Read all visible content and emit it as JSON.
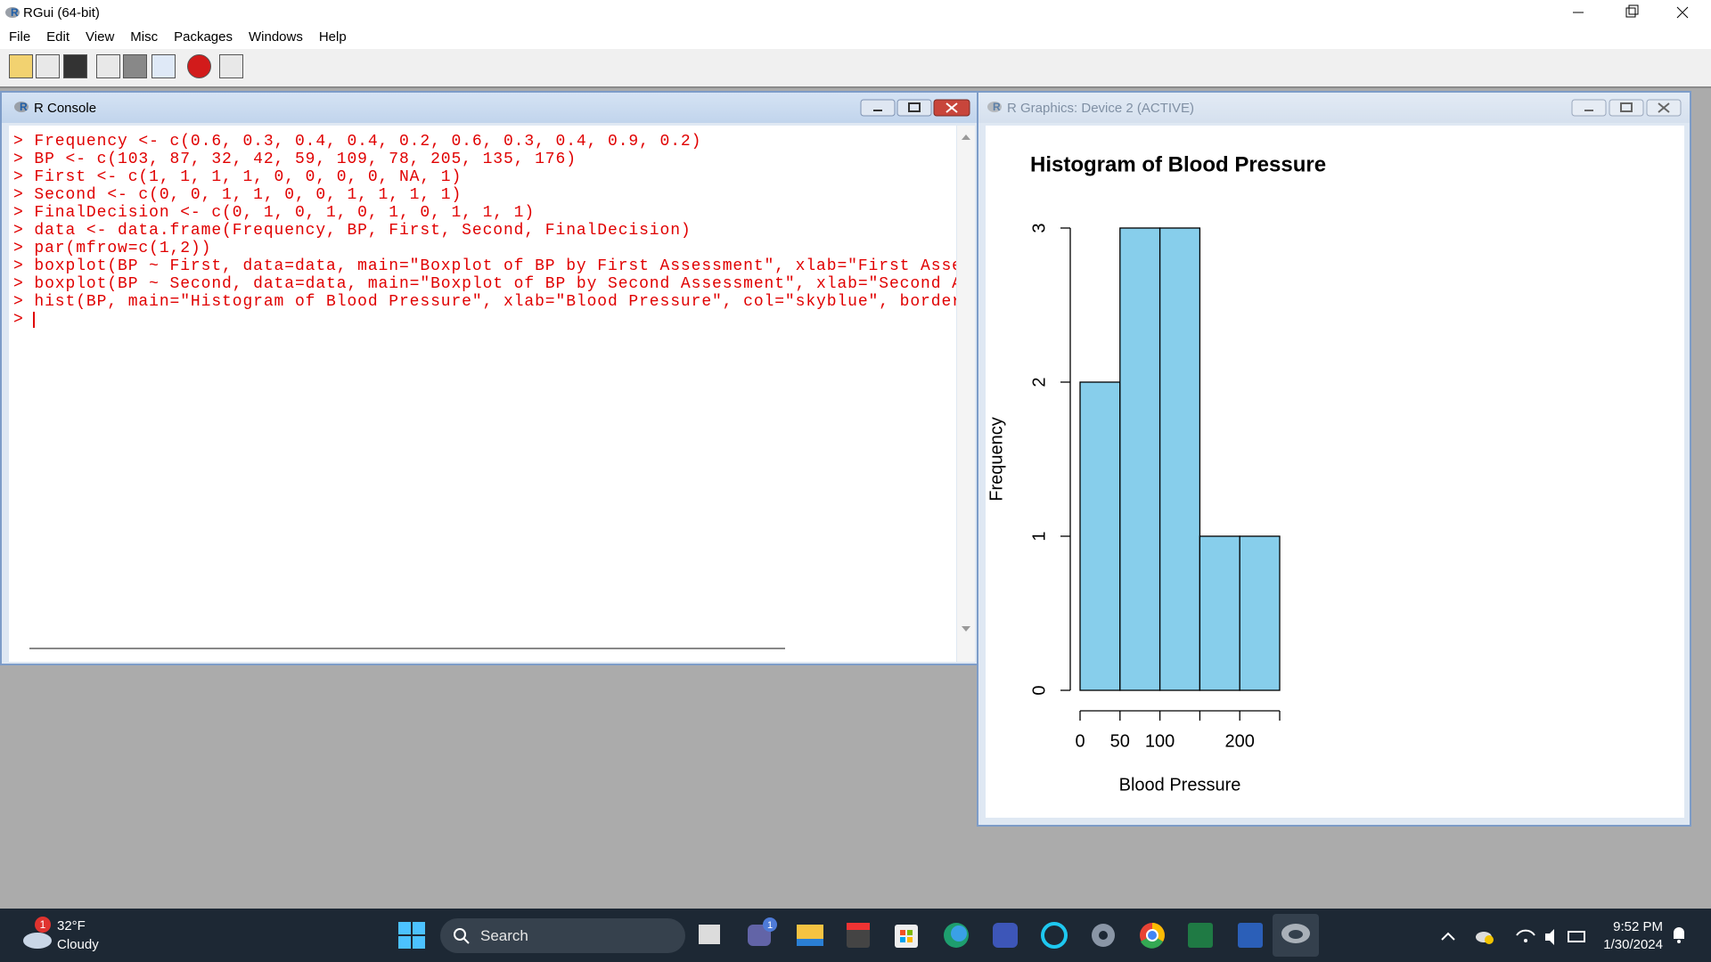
{
  "app_title": "RGui (64-bit)",
  "menu": [
    "File",
    "Edit",
    "View",
    "Misc",
    "Packages",
    "Windows",
    "Help"
  ],
  "console": {
    "title": "R Console",
    "lines": [
      "> Frequency <- c(0.6, 0.3, 0.4, 0.4, 0.2, 0.6, 0.3, 0.4, 0.9, 0.2)",
      "> BP <- c(103, 87, 32, 42, 59, 109, 78, 205, 135, 176)",
      "> First <- c(1, 1, 1, 1, 0, 0, 0, 0, NA, 1)",
      "> Second <- c(0, 0, 1, 1, 0, 0, 1, 1, 1, 1)",
      "> FinalDecision <- c(0, 1, 0, 1, 0, 1, 0, 1, 1, 1)",
      "> data <- data.frame(Frequency, BP, First, Second, FinalDecision)",
      "> par(mfrow=c(1,2))",
      "> boxplot(BP ~ First, data=data, main=\"Boxplot of BP by First Assessment\", xlab=\"First Assessment\", ylab$",
      "> boxplot(BP ~ Second, data=data, main=\"Boxplot of BP by Second Assessment\", xlab=\"Second Assessment\", y$",
      "> hist(BP, main=\"Histogram of Blood Pressure\", xlab=\"Blood Pressure\", col=\"skyblue\", border=\"black\")",
      ">"
    ]
  },
  "graphics": {
    "title": "R Graphics: Device 2 (ACTIVE)"
  },
  "chart_data": {
    "type": "histogram",
    "title": "Histogram of Blood Pressure",
    "xlabel": "Blood Pressure",
    "ylabel": "Frequency",
    "bins": [
      0,
      50,
      100,
      150,
      200,
      250
    ],
    "values": [
      2,
      3,
      3,
      1,
      1
    ],
    "color": "#87ceeb",
    "edgecolor": "#000000",
    "xlim": [
      0,
      250
    ],
    "ylim": [
      0,
      3
    ],
    "xticks": [
      0,
      50,
      100,
      {
        "value": 150,
        "label": null
      },
      200,
      {
        "value": 250,
        "label": null
      }
    ],
    "yticks": [
      0,
      1,
      2,
      3
    ]
  },
  "taskbar": {
    "weather_badge": "1",
    "temperature": "32°F",
    "weather": "Cloudy",
    "search": "Search",
    "teams_badge": "1",
    "time": "9:52 PM",
    "date": "1/30/2024"
  }
}
